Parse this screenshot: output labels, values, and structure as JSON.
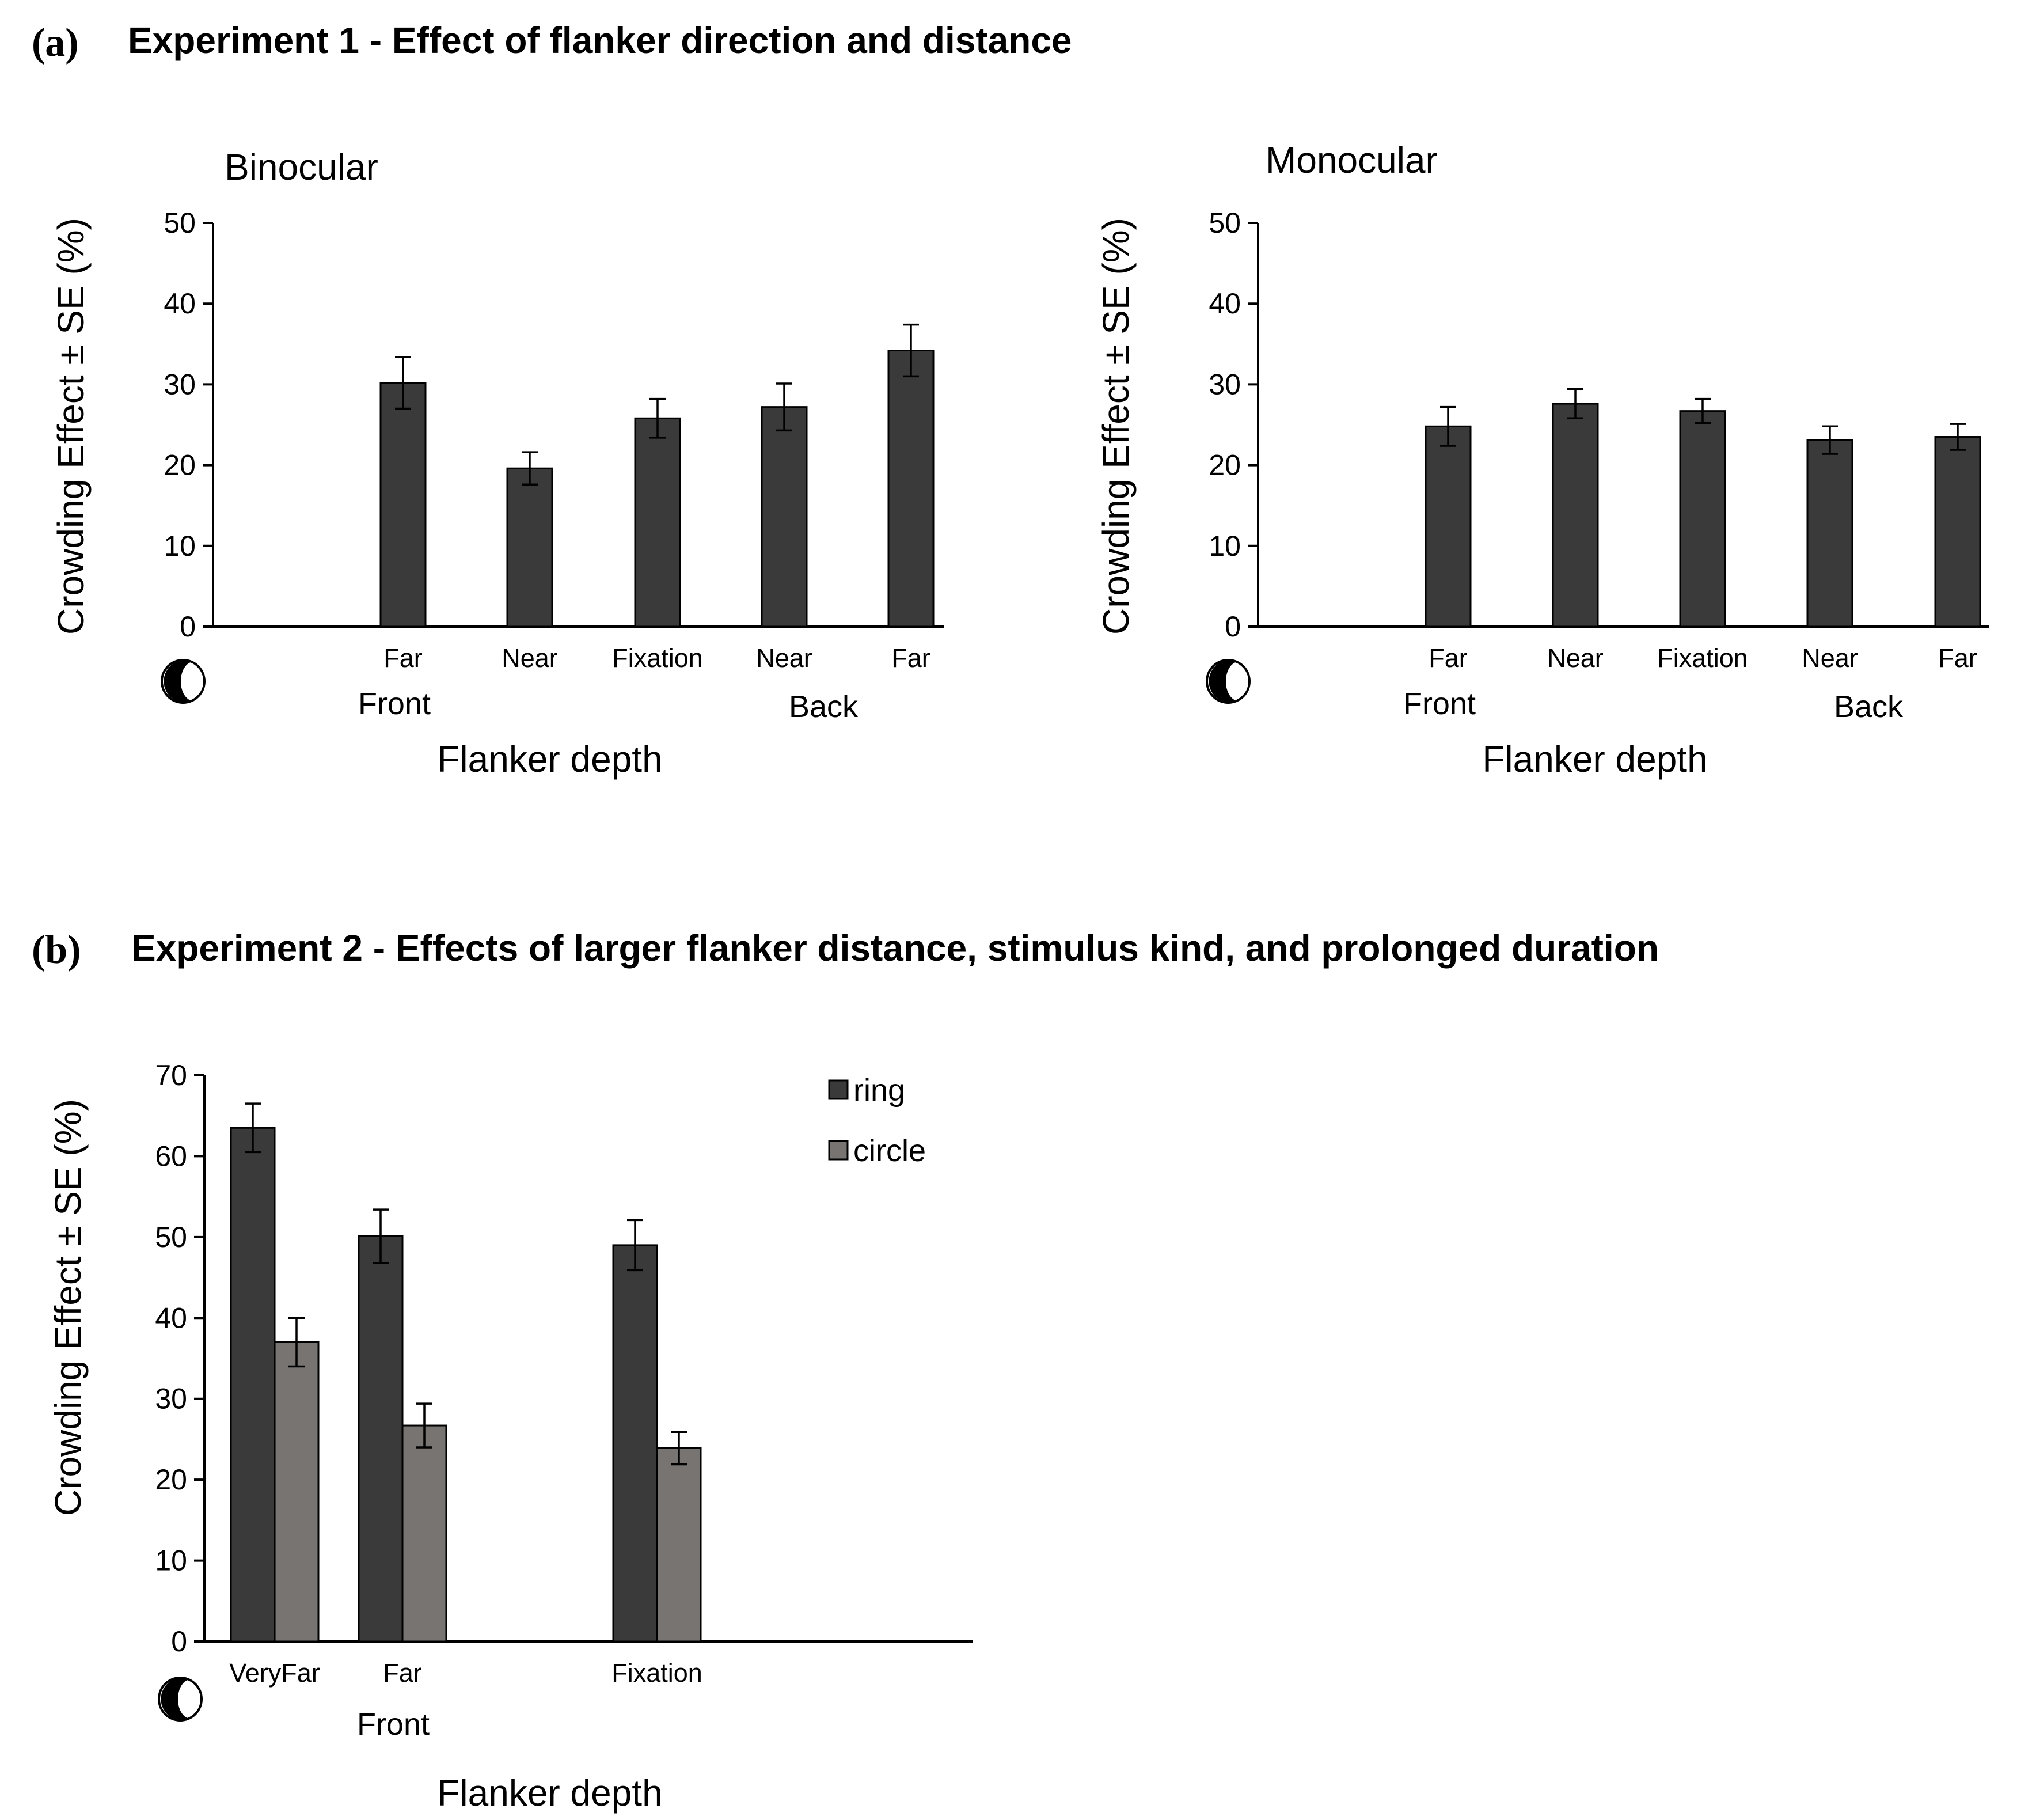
{
  "chart_data": [
    {
      "panel_letter": "(a)",
      "panel_title": "Experiment 1 - Effect of flanker direction and distance",
      "type": "bar",
      "title": "Binocular",
      "ylabel": "Crowding Effect ± SE (%)",
      "xlabel": "Flanker depth",
      "ylim": [
        0,
        50
      ],
      "yticks": [
        "0",
        "10",
        "20",
        "30",
        "40",
        "50"
      ],
      "categories": [
        "Far",
        "Near",
        "Fixation",
        "Near",
        "Far"
      ],
      "groups": [
        "Front",
        "Back"
      ],
      "series": [
        {
          "name": "",
          "color": "#3a3a3a",
          "values": [
            30.2,
            19.6,
            25.8,
            27.2,
            34.2
          ],
          "errors": [
            3.2,
            2.0,
            2.4,
            2.9,
            3.2
          ]
        }
      ]
    },
    {
      "type": "bar",
      "title": "Monocular",
      "ylabel": "Crowding Effect ± SE (%)",
      "xlabel": "Flanker depth",
      "ylim": [
        0,
        50
      ],
      "yticks": [
        "0",
        "10",
        "20",
        "30",
        "40",
        "50"
      ],
      "categories": [
        "Far",
        "Near",
        "Fixation",
        "Near",
        "Far"
      ],
      "groups": [
        "Front",
        "Back"
      ],
      "series": [
        {
          "name": "",
          "color": "#3a3a3a",
          "values": [
            24.8,
            27.6,
            26.7,
            23.1,
            23.5
          ],
          "errors": [
            2.4,
            1.8,
            1.5,
            1.7,
            1.6
          ]
        }
      ]
    },
    {
      "panel_letter": "(b)",
      "panel_title": "Experiment 2 - Effects of larger flanker distance, stimulus kind, and prolonged duration",
      "type": "bar",
      "title": "",
      "ylabel": "Crowding Effect ± SE (%)",
      "xlabel": "Flanker depth",
      "ylim": [
        0,
        70
      ],
      "yticks": [
        "0",
        "10",
        "20",
        "30",
        "40",
        "50",
        "60",
        "70"
      ],
      "categories": [
        "VeryFar",
        "Far",
        "",
        "Fixation",
        "",
        ""
      ],
      "groups": [
        "Front"
      ],
      "legend": "top-right",
      "series": [
        {
          "name": "ring",
          "color": "#3a3a3a",
          "values": [
            63.5,
            50.1,
            null,
            49.0,
            null,
            null
          ],
          "errors": [
            3.0,
            3.3,
            null,
            3.1,
            null,
            null
          ]
        },
        {
          "name": "circle",
          "color": "#777472",
          "values": [
            37.0,
            26.7,
            null,
            23.9,
            null,
            null
          ],
          "errors": [
            3.0,
            2.7,
            null,
            2.0,
            null,
            null
          ]
        }
      ]
    }
  ]
}
